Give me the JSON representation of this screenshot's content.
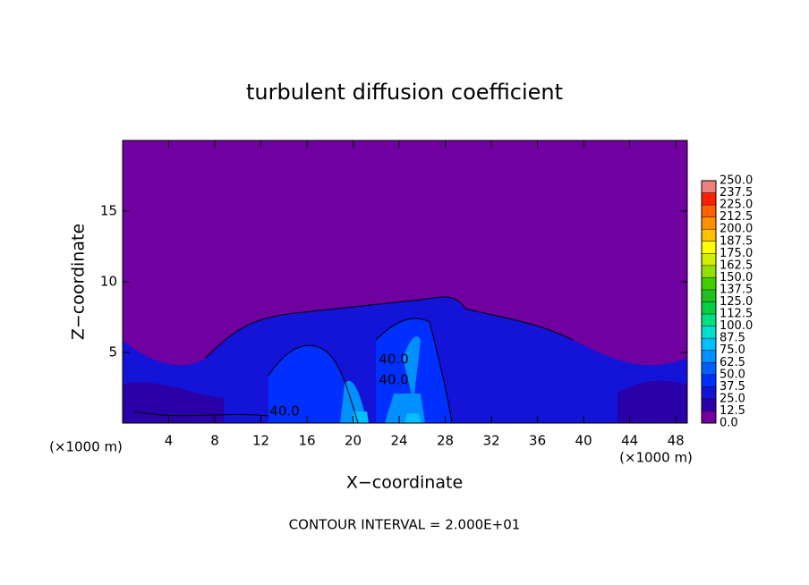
{
  "chart_data": {
    "type": "contour",
    "title": "turbulent diffusion coefficient",
    "x_label": "X−coordinate",
    "y_label": "Z−coordinate",
    "x_unit": "(×1000 m)",
    "y_unit": "(×1000 m)",
    "footer": "CONTOUR INTERVAL = 2.000E+01",
    "xlim": [
      0,
      49
    ],
    "ylim": [
      0,
      20
    ],
    "xticks": [
      4,
      8,
      12,
      16,
      20,
      24,
      28,
      32,
      36,
      40,
      44,
      48
    ],
    "yticks": [
      5,
      10,
      15
    ],
    "contour_labels": [
      "40.0",
      "40.0",
      "40.0"
    ],
    "colorbar": {
      "ticks": [
        {
          "value": 0,
          "label": "0.0"
        },
        {
          "value": 12.5,
          "label": "12.5"
        },
        {
          "value": 25,
          "label": "25.0"
        },
        {
          "value": 37.5,
          "label": "37.5"
        },
        {
          "value": 50,
          "label": "50.0"
        },
        {
          "value": 62.5,
          "label": "62.5"
        },
        {
          "value": 75,
          "label": "75.0"
        },
        {
          "value": 87.5,
          "label": "87.5"
        },
        {
          "value": 100,
          "label": "100.0"
        },
        {
          "value": 112.5,
          "label": "112.5"
        },
        {
          "value": 125,
          "label": "125.0"
        },
        {
          "value": 137.5,
          "label": "137.5"
        },
        {
          "value": 150,
          "label": "150.0"
        },
        {
          "value": 162.5,
          "label": "162.5"
        },
        {
          "value": 175,
          "label": "175.0"
        },
        {
          "value": 187.5,
          "label": "187.5"
        },
        {
          "value": 200,
          "label": "200.0"
        },
        {
          "value": 212.5,
          "label": "212.5"
        },
        {
          "value": 225,
          "label": "225.0"
        },
        {
          "value": 237.5,
          "label": "237.5"
        },
        {
          "value": 250,
          "label": "250.0"
        }
      ],
      "colors": [
        "#7000a0",
        "#2a00a8",
        "#1414d8",
        "#0030ff",
        "#0060ff",
        "#0090ff",
        "#00c0ff",
        "#00e0d0",
        "#00e080",
        "#00d040",
        "#20c020",
        "#40d000",
        "#90e000",
        "#d0f000",
        "#ffff00",
        "#ffc000",
        "#ff9000",
        "#ff6000",
        "#ff2000",
        "#f08080"
      ]
    }
  }
}
